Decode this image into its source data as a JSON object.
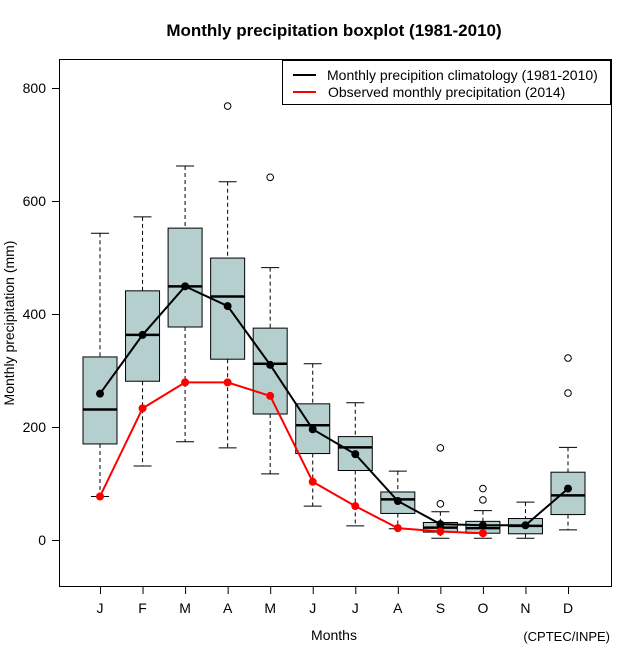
{
  "chart_data": {
    "type": "boxplot",
    "title": "Monthly precipitation boxplot (1981-2010)",
    "xlabel": "Months",
    "ylabel": "Monthly precipitation (mm)",
    "source_note": "(CPTEC/INPE)",
    "ylim": [
      -80,
      850
    ],
    "yticks": [
      0,
      200,
      400,
      600,
      800
    ],
    "grid": false,
    "legend_position": "top-right",
    "categories": [
      "J",
      "F",
      "M",
      "A",
      "M",
      "J",
      "J",
      "A",
      "S",
      "O",
      "N",
      "D"
    ],
    "boxes": [
      {
        "month": "J",
        "whisker_low": 77,
        "q1": 170,
        "median": 231,
        "q3": 324,
        "whisker_high": 543,
        "outliers": []
      },
      {
        "month": "F",
        "whisker_low": 131,
        "q1": 281,
        "median": 363,
        "q3": 441,
        "whisker_high": 572,
        "outliers": []
      },
      {
        "month": "M",
        "whisker_low": 174,
        "q1": 377,
        "median": 449,
        "q3": 552,
        "whisker_high": 662,
        "outliers": []
      },
      {
        "month": "A",
        "whisker_low": 163,
        "q1": 320,
        "median": 431,
        "q3": 499,
        "whisker_high": 634,
        "outliers": [
          768
        ]
      },
      {
        "month": "M",
        "whisker_low": 117,
        "q1": 223,
        "median": 312,
        "q3": 375,
        "whisker_high": 482,
        "outliers": [
          642
        ]
      },
      {
        "month": "J",
        "whisker_low": 60,
        "q1": 153,
        "median": 203,
        "q3": 241,
        "whisker_high": 312,
        "outliers": []
      },
      {
        "month": "J",
        "whisker_low": 25,
        "q1": 123,
        "median": 164,
        "q3": 183,
        "whisker_high": 243,
        "outliers": []
      },
      {
        "month": "A",
        "whisker_low": 20,
        "q1": 47,
        "median": 72,
        "q3": 85,
        "whisker_high": 122,
        "outliers": []
      },
      {
        "month": "S",
        "whisker_low": 3,
        "q1": 14,
        "median": 22,
        "q3": 31,
        "whisker_high": 50,
        "outliers": [
          64,
          163
        ]
      },
      {
        "month": "O",
        "whisker_low": 3,
        "q1": 12,
        "median": 21,
        "q3": 33,
        "whisker_high": 52,
        "outliers": [
          71,
          91
        ]
      },
      {
        "month": "N",
        "whisker_low": 3,
        "q1": 11,
        "median": 25,
        "q3": 38,
        "whisker_high": 67,
        "outliers": []
      },
      {
        "month": "D",
        "whisker_low": 18,
        "q1": 45,
        "median": 79,
        "q3": 120,
        "whisker_high": 164,
        "outliers": [
          260,
          322
        ]
      }
    ],
    "series": [
      {
        "name": "Monthly precipition climatology (1981-2010)",
        "color": "#000000",
        "values": [
          259,
          363,
          449,
          414,
          310,
          196,
          152,
          69,
          28,
          26,
          26,
          91
        ]
      },
      {
        "name": "Observed monthly precipitation (2014)",
        "color": "#ff0000",
        "values": [
          77,
          233,
          279,
          279,
          255,
          103,
          60,
          21,
          15,
          12,
          null,
          null
        ]
      }
    ],
    "colors": {
      "box_fill": "#b5cfcf",
      "axis": "#000000",
      "background": "#ffffff"
    }
  }
}
